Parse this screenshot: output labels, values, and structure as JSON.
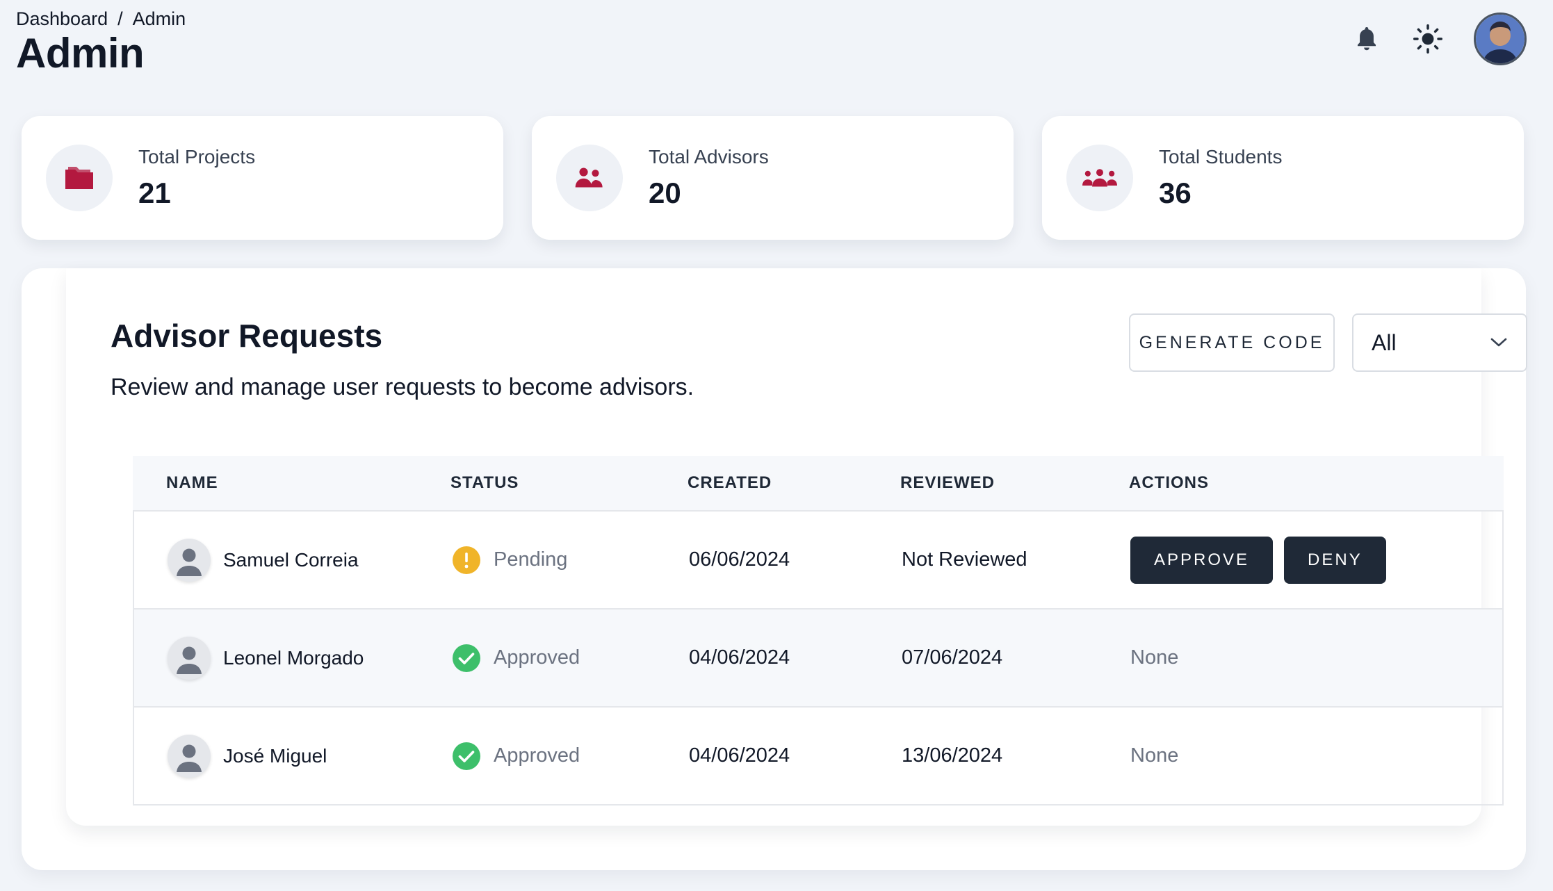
{
  "breadcrumb": {
    "items": [
      "Dashboard",
      "Admin"
    ],
    "separator": "/"
  },
  "page_title": "Admin",
  "header": {
    "icons": [
      "bell-icon",
      "sun-icon",
      "user-avatar"
    ]
  },
  "stats": [
    {
      "label": "Total Projects",
      "value": "21",
      "icon": "folder-icon"
    },
    {
      "label": "Total Advisors",
      "value": "20",
      "icon": "users-icon"
    },
    {
      "label": "Total Students",
      "value": "36",
      "icon": "user-group-icon"
    }
  ],
  "advisor_requests": {
    "title": "Advisor Requests",
    "subtitle": "Review and manage user requests to become advisors.",
    "generate_code_label": "GENERATE CODE",
    "filter": {
      "selected": "All"
    },
    "columns": {
      "name": "NAME",
      "status": "STATUS",
      "created": "CREATED",
      "reviewed": "REVIEWED",
      "actions": "ACTIONS"
    },
    "rows": [
      {
        "name": "Samuel Correia",
        "status": "Pending",
        "created": "06/06/2024",
        "reviewed": "Not Reviewed",
        "actions": {
          "approve": "APPROVE",
          "deny": "DENY"
        }
      },
      {
        "name": "Leonel Morgado",
        "status": "Approved",
        "created": "04/06/2024",
        "reviewed": "07/06/2024",
        "actions_text": "None"
      },
      {
        "name": "José Miguel",
        "status": "Approved",
        "created": "04/06/2024",
        "reviewed": "13/06/2024",
        "actions_text": "None"
      }
    ]
  },
  "colors": {
    "accent": "#b3193f",
    "pending": "#f0b429",
    "approved": "#3dbf6a",
    "dark_button": "#1f2937"
  }
}
